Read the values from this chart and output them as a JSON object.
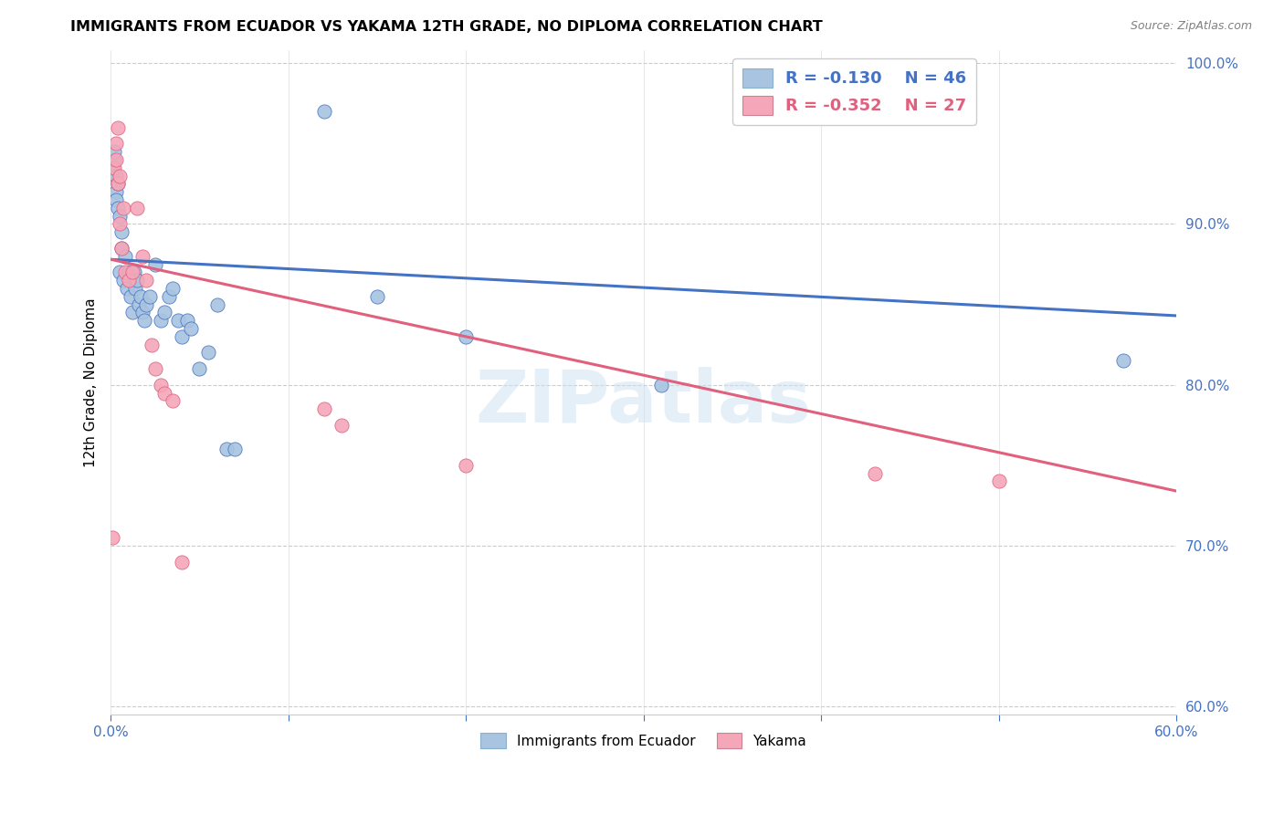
{
  "title": "IMMIGRANTS FROM ECUADOR VS YAKAMA 12TH GRADE, NO DIPLOMA CORRELATION CHART",
  "source": "Source: ZipAtlas.com",
  "ylabel": "12th Grade, No Diploma",
  "legend_label1": "Immigrants from Ecuador",
  "legend_label2": "Yakama",
  "r1": "-0.130",
  "n1": "46",
  "r2": "-0.352",
  "n2": "27",
  "xmin": 0.0,
  "xmax": 0.6,
  "ymin": 0.595,
  "ymax": 1.008,
  "blue_color": "#a8c4e0",
  "pink_color": "#f4a7b9",
  "line_blue": "#4472c4",
  "line_pink": "#e0607e",
  "watermark": "ZIPatlas",
  "blue_scatter_x": [
    0.001,
    0.002,
    0.002,
    0.003,
    0.003,
    0.003,
    0.004,
    0.004,
    0.005,
    0.005,
    0.006,
    0.006,
    0.007,
    0.008,
    0.009,
    0.01,
    0.011,
    0.012,
    0.013,
    0.014,
    0.015,
    0.016,
    0.017,
    0.018,
    0.019,
    0.02,
    0.022,
    0.025,
    0.028,
    0.03,
    0.033,
    0.035,
    0.038,
    0.04,
    0.043,
    0.045,
    0.05,
    0.055,
    0.06,
    0.065,
    0.07,
    0.12,
    0.15,
    0.2,
    0.31,
    0.57
  ],
  "blue_scatter_y": [
    0.935,
    0.94,
    0.945,
    0.93,
    0.92,
    0.915,
    0.925,
    0.91,
    0.905,
    0.87,
    0.895,
    0.885,
    0.865,
    0.88,
    0.86,
    0.87,
    0.855,
    0.845,
    0.87,
    0.86,
    0.865,
    0.85,
    0.855,
    0.845,
    0.84,
    0.85,
    0.855,
    0.875,
    0.84,
    0.845,
    0.855,
    0.86,
    0.84,
    0.83,
    0.84,
    0.835,
    0.81,
    0.82,
    0.85,
    0.76,
    0.76,
    0.97,
    0.855,
    0.83,
    0.8,
    0.815
  ],
  "pink_scatter_x": [
    0.001,
    0.002,
    0.003,
    0.003,
    0.004,
    0.004,
    0.005,
    0.005,
    0.006,
    0.007,
    0.008,
    0.01,
    0.012,
    0.015,
    0.018,
    0.02,
    0.023,
    0.025,
    0.028,
    0.03,
    0.035,
    0.04,
    0.12,
    0.13,
    0.2,
    0.43,
    0.5
  ],
  "pink_scatter_y": [
    0.705,
    0.935,
    0.95,
    0.94,
    0.96,
    0.925,
    0.93,
    0.9,
    0.885,
    0.91,
    0.87,
    0.865,
    0.87,
    0.91,
    0.88,
    0.865,
    0.825,
    0.81,
    0.8,
    0.795,
    0.79,
    0.69,
    0.785,
    0.775,
    0.75,
    0.745,
    0.74
  ],
  "blue_line_x0": 0.0,
  "blue_line_x1": 0.6,
  "blue_line_y0": 0.878,
  "blue_line_y1": 0.843,
  "pink_line_x0": 0.0,
  "pink_line_x1": 0.6,
  "pink_line_y0": 0.878,
  "pink_line_y1": 0.734,
  "xticks": [
    0.0,
    0.1,
    0.2,
    0.3,
    0.4,
    0.5,
    0.6
  ],
  "yticks": [
    0.6,
    0.7,
    0.8,
    0.9,
    1.0
  ]
}
